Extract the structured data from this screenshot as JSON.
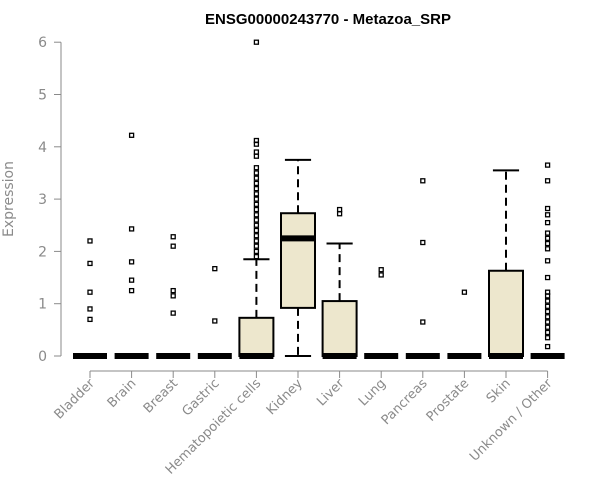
{
  "chart_data": {
    "type": "box",
    "title": "ENSG00000243770 - Metazoa_SRP",
    "xlabel": "",
    "ylabel": "Expression",
    "ylim": [
      0,
      6
    ],
    "yticks": [
      "0",
      "1",
      "2",
      "3",
      "4",
      "5",
      "6"
    ],
    "grid": false,
    "colors": {
      "box_fill": "#ede7cd",
      "box_stroke": "#000000",
      "axis": "#8a8a8a"
    },
    "categories": [
      "Bladder",
      "Brain",
      "Breast",
      "Gastric",
      "Hematopoietic cells",
      "Kidney",
      "Liver",
      "Lung",
      "Pancreas",
      "Prostate",
      "Skin",
      "Unknown / Other"
    ],
    "boxes": [
      {
        "q1": 0,
        "median": 0,
        "q3": 0,
        "whisker_low": 0,
        "whisker_high": 0,
        "outliers": [
          0.7,
          0.9,
          1.22,
          1.77,
          2.2
        ]
      },
      {
        "q1": 0,
        "median": 0,
        "q3": 0,
        "whisker_low": 0,
        "whisker_high": 0,
        "outliers": [
          1.25,
          1.45,
          1.8,
          2.43,
          4.22
        ]
      },
      {
        "q1": 0,
        "median": 0,
        "q3": 0,
        "whisker_low": 0,
        "whisker_high": 0,
        "outliers": [
          0.82,
          1.15,
          1.25,
          2.1,
          2.28
        ]
      },
      {
        "q1": 0,
        "median": 0,
        "q3": 0,
        "whisker_low": 0,
        "whisker_high": 0,
        "outliers": [
          0.67,
          1.67
        ]
      },
      {
        "q1": 0,
        "median": 0,
        "q3": 0.73,
        "whisker_low": 0,
        "whisker_high": 1.85,
        "outliers": [
          1.9,
          2.0,
          2.1,
          2.2,
          2.3,
          2.4,
          2.5,
          2.6,
          2.7,
          2.8,
          2.9,
          3.0,
          3.1,
          3.2,
          3.3,
          3.4,
          3.5,
          3.6,
          3.82,
          3.9,
          4.05,
          4.12,
          6.0
        ]
      },
      {
        "q1": 0.92,
        "median": 2.25,
        "q3": 2.73,
        "whisker_low": 0,
        "whisker_high": 3.75,
        "outliers": []
      },
      {
        "q1": 0,
        "median": 0,
        "q3": 1.05,
        "whisker_low": 0,
        "whisker_high": 2.15,
        "outliers": [
          2.72,
          2.8
        ]
      },
      {
        "q1": 0,
        "median": 0,
        "q3": 0,
        "whisker_low": 0,
        "whisker_high": 0,
        "outliers": [
          1.55,
          1.65
        ]
      },
      {
        "q1": 0,
        "median": 0,
        "q3": 0,
        "whisker_low": 0,
        "whisker_high": 0,
        "outliers": [
          0.65,
          2.17,
          3.35
        ]
      },
      {
        "q1": 0,
        "median": 0,
        "q3": 0,
        "whisker_low": 0,
        "whisker_high": 0,
        "outliers": [
          1.22
        ]
      },
      {
        "q1": 0,
        "median": 0,
        "q3": 1.63,
        "whisker_low": 0,
        "whisker_high": 3.55,
        "outliers": []
      },
      {
        "q1": 0,
        "median": 0,
        "q3": 0,
        "whisker_low": 0,
        "whisker_high": 0,
        "outliers": [
          0.18,
          0.35,
          0.45,
          0.55,
          0.65,
          0.75,
          0.85,
          0.95,
          1.05,
          1.15,
          1.22,
          1.5,
          1.82,
          2.05,
          2.15,
          2.25,
          2.35,
          2.55,
          2.7,
          2.82,
          3.35,
          3.65
        ]
      }
    ]
  }
}
